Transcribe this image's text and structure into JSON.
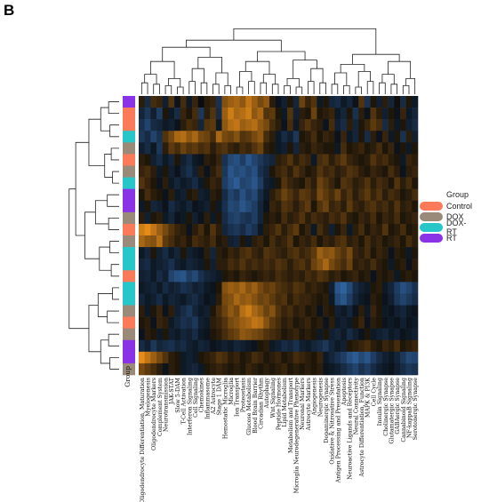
{
  "panel_label": "B",
  "colors": {
    "Control": "#fa7a5a",
    "DOX": "#9a8a7a",
    "DOX-RT": "#27c6c8",
    "RT": "#8a32e6",
    "heat_low": "#3d7fcf",
    "heat_mid": "#060708",
    "heat_high": "#ff9a1a"
  },
  "chart_data": {
    "type": "heatmap",
    "title": "",
    "xlabel": "",
    "ylabel": "",
    "annotation_label": "Group",
    "legend": {
      "title": "Group",
      "placement": "right",
      "entries": [
        "Control",
        "DOX",
        "DOX-RT",
        "RT"
      ]
    },
    "columns": [
      "Oligodendrocyte Differentiation, Maturation",
      "Myelogenesis",
      "Oligodendrocyte Markers",
      "Complement System",
      "Neurotransmission",
      "JAK-STAT",
      "Slow 5-DAM",
      "T-Cell Activation",
      "Interferon Signaling",
      "Cell Signaling",
      "Chemokines",
      "Inflammasome",
      "A2 Astrocyte",
      "Stage 1 DAM",
      "Hemostatic Microglia",
      "Microglia",
      "Ion Transport",
      "Proteostasis",
      "Glucose Metabolism",
      "Blood Brain Barrier",
      "Circadian Rhythm",
      "Autophagy",
      "Wnt Signaling",
      "Peptide Hormones",
      "Lipid Metabolism",
      "Metabolism and Transport",
      "Microglia Neurodegenerative Phenotype",
      "Neuronal Markers",
      "Astrocyte Markers",
      "Angiogenesis",
      "Neurogenesis",
      "Dopaminergic Synapse",
      "Oxidative & Nitrosative Stress",
      "Antigen Processing and Presentation",
      "Apoptosis",
      "Neuroactive Ligands and Receptors",
      "Neural Connectivity",
      "Astrocyte Differentiation, Function",
      "MAPK & PI3K",
      "Cell Cycle",
      "Insulin Signaling",
      "Cholinergic Synapse",
      "Glutamatergic Synapse",
      "GABAergic Synapse",
      "Cannabinoid Signaling",
      "NF-kappaB Signaling",
      "Serotonergic Synapse"
    ],
    "row_groups": [
      "RT",
      "Control",
      "Control",
      "DOX-RT",
      "DOX",
      "Control",
      "DOX",
      "DOX-RT",
      "RT",
      "RT",
      "DOX",
      "Control",
      "DOX",
      "DOX-RT",
      "DOX-RT",
      "Control",
      "DOX-RT",
      "DOX-RT",
      "DOX",
      "Control",
      "DOX",
      "RT",
      "RT",
      "DOX"
    ],
    "value_range": [
      -2,
      2
    ],
    "values": [
      [
        0.3,
        -0.6,
        0.5,
        0.4,
        -0.4,
        0.6,
        -0.2,
        0.5,
        -0.3,
        0.4,
        -0.1,
        0.3,
        0.4,
        -0.7,
        1.0,
        1.2,
        1.3,
        1.1,
        1.5,
        1.2,
        0.9,
        1.1,
        0.3,
        -0.2,
        -0.4,
        0.2,
        -0.5,
        0.8,
        0.4,
        0.6,
        -0.3,
        0.2,
        -0.5,
        -0.6,
        -0.3,
        -0.5,
        -0.2,
        0.6,
        -0.7,
        0.2,
        -0.4,
        0.3,
        -0.5,
        0.1,
        -0.6,
        0.2,
        -0.3
      ],
      [
        -0.5,
        -0.8,
        -0.4,
        -0.9,
        0.2,
        -0.3,
        -0.6,
        0.4,
        0.2,
        0.5,
        -0.8,
        0.3,
        0.6,
        -0.6,
        1.2,
        1.6,
        1.3,
        1.4,
        1.6,
        1.1,
        1.3,
        0.6,
        0.7,
        0.2,
        -0.3,
        0.6,
        -0.4,
        0.3,
        0.2,
        0.8,
        0.2,
        0.3,
        0.4,
        -0.3,
        -0.5,
        0.2,
        -0.7,
        0.3,
        -0.2,
        0.6,
        0.3,
        -0.4,
        0.2,
        -0.2,
        0.4,
        -0.3,
        -0.5
      ],
      [
        -0.7,
        -1.0,
        -0.6,
        -0.5,
        -0.3,
        -0.4,
        -0.2,
        0.3,
        0.5,
        0.4,
        -0.5,
        0.6,
        0.7,
        -0.3,
        1.1,
        1.4,
        1.5,
        1.2,
        1.3,
        1.4,
        1.1,
        0.9,
        0.5,
        0.3,
        -0.2,
        0.5,
        -0.3,
        0.4,
        0.6,
        0.4,
        0.3,
        -0.2,
        0.5,
        -0.4,
        -0.6,
        0.3,
        -0.5,
        0.2,
        0.4,
        0.7,
        0.5,
        -0.6,
        0.3,
        -0.3,
        0.2,
        -0.4,
        -0.6
      ],
      [
        -0.8,
        -0.6,
        -1.0,
        -0.7,
        0.6,
        0.9,
        1.3,
        1.4,
        1.1,
        1.3,
        0.9,
        0.8,
        0.5,
        1.3,
        0.9,
        0.8,
        1.0,
        0.6,
        0.7,
        0.9,
        1.1,
        0.5,
        0.3,
        -0.3,
        -0.6,
        -0.4,
        -0.8,
        0.2,
        0.3,
        0.5,
        0.2,
        0.4,
        0.3,
        -0.2,
        0.4,
        -0.3,
        -0.5,
        0.2,
        -0.6,
        0.3,
        -0.2,
        0.4,
        -0.3,
        0.2,
        -0.7,
        0.3,
        -0.4
      ],
      [
        -0.4,
        -0.6,
        -0.3,
        -0.8,
        0.3,
        0.7,
        0.5,
        0.8,
        0.6,
        0.7,
        0.5,
        0.6,
        0.3,
        0.5,
        0.6,
        0.4,
        0.3,
        0.5,
        0.4,
        0.6,
        0.8,
        0.3,
        0.2,
        -0.3,
        -0.4,
        0.2,
        -0.5,
        0.3,
        0.2,
        0.4,
        0.3,
        0.2,
        0.2,
        -0.3,
        0.5,
        0.2,
        0.3,
        0.4,
        0.2,
        0.3,
        0.5,
        0.2,
        0.4,
        -0.2,
        0.2,
        -0.3,
        0.2
      ],
      [
        0.3,
        0.2,
        -0.4,
        -0.6,
        -0.3,
        -0.5,
        0.2,
        -0.4,
        -0.6,
        -0.3,
        -0.2,
        0.3,
        0.2,
        0.4,
        -0.7,
        -1.1,
        -1.2,
        -0.9,
        -1.3,
        -1.0,
        -0.8,
        -0.6,
        -0.5,
        0.3,
        0.4,
        0.6,
        0.3,
        0.5,
        0.4,
        -0.3,
        0.5,
        0.6,
        0.3,
        0.5,
        0.7,
        0.4,
        0.3,
        0.2,
        0.3,
        0.6,
        0.4,
        0.5,
        0.3,
        0.2,
        -0.3,
        0.4,
        0.3
      ],
      [
        0.4,
        0.5,
        0.3,
        -0.3,
        0.2,
        -0.4,
        -0.2,
        -0.5,
        -0.7,
        -0.4,
        0.3,
        -0.2,
        0.3,
        0.5,
        -0.8,
        -1.3,
        -1.1,
        -1.2,
        -1.0,
        -1.2,
        -0.7,
        -0.5,
        0.2,
        0.4,
        0.5,
        0.3,
        0.6,
        0.4,
        0.2,
        0.3,
        0.6,
        0.4,
        0.5,
        0.3,
        0.4,
        0.6,
        0.5,
        0.3,
        0.2,
        0.4,
        0.3,
        0.2,
        0.5,
        0.3,
        -0.2,
        0.3,
        0.4
      ],
      [
        0.6,
        0.4,
        0.2,
        -0.2,
        0.3,
        -0.3,
        -0.5,
        -0.3,
        -0.4,
        -0.6,
        -0.3,
        0.2,
        0.4,
        0.3,
        -0.9,
        -1.2,
        -1.4,
        -1.0,
        -1.1,
        -1.3,
        -0.9,
        -0.4,
        -0.3,
        0.2,
        0.6,
        0.4,
        0.3,
        0.2,
        0.5,
        0.3,
        0.8,
        0.6,
        0.4,
        0.2,
        0.6,
        0.5,
        0.3,
        0.4,
        0.6,
        0.3,
        0.5,
        0.4,
        0.2,
        0.6,
        0.3,
        0.5,
        0.2
      ],
      [
        0.2,
        0.5,
        0.3,
        0.2,
        -0.2,
        0.3,
        -0.3,
        -0.4,
        0.2,
        0.3,
        -0.4,
        -0.3,
        0.3,
        0.2,
        -0.6,
        -1.0,
        -0.8,
        -1.2,
        -0.9,
        -1.1,
        -0.6,
        -0.3,
        0.3,
        0.5,
        0.8,
        0.6,
        0.4,
        0.7,
        0.6,
        0.4,
        0.9,
        0.7,
        0.5,
        0.8,
        0.4,
        0.6,
        0.3,
        0.5,
        0.7,
        0.4,
        0.6,
        0.3,
        0.5,
        0.4,
        0.2,
        0.3,
        0.5
      ],
      [
        -0.3,
        0.2,
        -0.5,
        -0.4,
        -0.2,
        -0.6,
        -0.4,
        -0.3,
        -0.5,
        -0.2,
        -0.3,
        -0.4,
        0.2,
        -0.3,
        -0.7,
        -1.1,
        -1.0,
        -1.3,
        -1.1,
        -0.9,
        -0.5,
        -0.2,
        0.4,
        0.3,
        0.6,
        0.5,
        0.3,
        0.5,
        0.7,
        0.2,
        0.6,
        0.8,
        0.4,
        0.5,
        0.3,
        0.7,
        0.4,
        0.3,
        0.5,
        0.6,
        0.4,
        0.5,
        0.3,
        0.6,
        0.3,
        0.4,
        0.2
      ],
      [
        0.3,
        -0.4,
        0.2,
        0.3,
        -0.3,
        -0.5,
        -0.2,
        -0.3,
        0.2,
        -0.4,
        -0.2,
        0.3,
        -0.3,
        0.2,
        -0.6,
        -0.9,
        -1.0,
        -0.8,
        -0.7,
        -0.9,
        -0.5,
        0.2,
        0.3,
        0.2,
        0.5,
        0.3,
        0.4,
        0.6,
        0.3,
        0.5,
        0.4,
        0.3,
        0.5,
        0.4,
        0.6,
        0.3,
        0.2,
        0.4,
        0.3,
        0.5,
        0.2,
        0.4,
        0.3,
        0.5,
        0.2,
        0.3,
        0.4
      ],
      [
        1.6,
        1.8,
        1.5,
        1.2,
        0.9,
        0.6,
        0.4,
        0.3,
        -0.2,
        0.3,
        0.5,
        0.2,
        0.6,
        0.3,
        -0.5,
        -0.7,
        -0.8,
        -0.6,
        -0.9,
        -0.7,
        -0.3,
        0.3,
        0.4,
        0.6,
        0.3,
        0.5,
        0.7,
        0.2,
        0.4,
        -0.3,
        0.5,
        0.3,
        -0.4,
        0.2,
        0.4,
        -0.3,
        0.3,
        0.5,
        0.2,
        0.4,
        0.3,
        0.6,
        0.2,
        0.3,
        0.5,
        0.2,
        0.3
      ],
      [
        1.3,
        1.1,
        1.0,
        1.4,
        0.7,
        0.5,
        0.3,
        0.4,
        0.2,
        0.5,
        0.4,
        0.3,
        0.5,
        0.2,
        0.3,
        -0.4,
        -0.5,
        0.2,
        -0.3,
        0.3,
        0.4,
        0.2,
        0.5,
        0.3,
        0.4,
        0.6,
        0.2,
        0.4,
        0.3,
        0.5,
        0.2,
        0.4,
        0.3,
        0.5,
        0.6,
        0.3,
        0.4,
        0.2,
        0.5,
        0.3,
        0.4,
        0.2,
        0.3,
        0.4,
        0.2,
        0.5,
        0.3
      ],
      [
        -0.3,
        -0.5,
        0.2,
        -0.4,
        -0.6,
        -0.3,
        -0.5,
        0.2,
        -0.4,
        -0.3,
        -0.2,
        0.3,
        -0.5,
        0.3,
        0.2,
        0.4,
        0.3,
        0.5,
        0.6,
        0.4,
        0.3,
        0.6,
        0.5,
        0.4,
        0.3,
        0.5,
        0.6,
        0.4,
        0.5,
        0.7,
        1.2,
        1.0,
        1.1,
        0.8,
        0.6,
        0.9,
        0.4,
        0.3,
        0.5,
        0.2,
        0.4,
        0.3,
        -0.2,
        0.3,
        0.2,
        -0.3,
        0.2
      ],
      [
        -0.5,
        -0.6,
        -0.3,
        -0.4,
        -0.5,
        -0.7,
        -0.4,
        -0.3,
        -0.5,
        -0.4,
        -0.3,
        0.2,
        -0.4,
        0.3,
        0.3,
        0.5,
        0.4,
        0.6,
        0.4,
        0.5,
        0.4,
        0.5,
        0.4,
        0.6,
        0.5,
        0.3,
        0.5,
        0.6,
        0.4,
        0.8,
        1.0,
        1.3,
        0.9,
        0.7,
        0.5,
        0.8,
        0.3,
        0.4,
        0.3,
        0.5,
        0.3,
        0.2,
        -0.3,
        0.2,
        0.3,
        -0.2,
        0.3
      ],
      [
        -0.4,
        -0.5,
        -0.3,
        -0.6,
        -0.4,
        -1.0,
        -1.2,
        -1.3,
        -0.9,
        -1.1,
        -0.7,
        -0.5,
        -0.4,
        -0.3,
        0.2,
        0.3,
        0.2,
        0.4,
        0.3,
        0.2,
        0.3,
        0.4,
        0.3,
        0.5,
        0.4,
        0.3,
        0.4,
        0.3,
        0.5,
        0.4,
        0.6,
        0.5,
        0.3,
        0.4,
        0.2,
        0.3,
        0.4,
        0.2,
        0.3,
        -0.2,
        0.3,
        0.2,
        0.3,
        -0.3,
        0.2,
        0.3,
        0.2
      ],
      [
        -0.3,
        -0.4,
        -0.5,
        -0.3,
        -0.6,
        -0.4,
        -0.5,
        -0.7,
        -0.6,
        -0.4,
        -0.5,
        -0.3,
        -0.2,
        0.2,
        1.0,
        1.2,
        1.1,
        1.3,
        1.0,
        1.2,
        0.9,
        0.7,
        0.8,
        0.6,
        0.5,
        0.4,
        0.6,
        0.5,
        0.3,
        0.4,
        0.3,
        0.2,
        -0.4,
        -1.3,
        -1.5,
        -1.1,
        -0.6,
        -0.4,
        -0.3,
        0.2,
        0.3,
        -0.3,
        -0.5,
        -0.9,
        -1.2,
        -1.0,
        -0.7
      ],
      [
        -0.5,
        -0.3,
        -0.4,
        -0.6,
        -0.3,
        -0.5,
        -0.4,
        -0.3,
        -0.5,
        -0.6,
        -0.4,
        -0.2,
        -0.3,
        0.3,
        0.9,
        1.0,
        1.3,
        1.1,
        1.2,
        1.0,
        0.8,
        0.9,
        0.7,
        0.5,
        0.6,
        0.3,
        0.5,
        0.4,
        0.4,
        0.3,
        0.2,
        0.3,
        -0.3,
        -1.1,
        -1.3,
        -0.9,
        -0.5,
        -0.3,
        -0.2,
        0.3,
        0.2,
        -0.2,
        -0.4,
        -0.8,
        -1.0,
        -0.8,
        -0.6
      ],
      [
        0.3,
        -0.3,
        0.2,
        0.4,
        -0.2,
        0.3,
        -0.4,
        -0.6,
        -0.8,
        -0.5,
        -0.3,
        -0.4,
        0.2,
        0.5,
        0.8,
        1.1,
        0.9,
        1.4,
        1.6,
        1.3,
        1.1,
        0.8,
        1.0,
        0.6,
        0.4,
        0.5,
        0.3,
        0.4,
        0.2,
        0.3,
        -0.2,
        0.3,
        0.2,
        -0.4,
        -0.3,
        -0.5,
        -0.2,
        0.3,
        -0.3,
        0.4,
        0.2,
        -0.3,
        -0.2,
        -0.4,
        -0.5,
        -0.3,
        -0.2
      ],
      [
        0.2,
        0.3,
        -0.2,
        0.4,
        0.3,
        -0.3,
        -0.5,
        -0.7,
        -0.6,
        -0.8,
        -0.4,
        -0.3,
        0.3,
        0.4,
        0.6,
        0.9,
        1.0,
        1.2,
        1.3,
        1.5,
        1.4,
        1.0,
        0.7,
        0.5,
        0.3,
        0.4,
        0.2,
        0.3,
        0.4,
        0.2,
        0.3,
        -0.2,
        0.3,
        -0.3,
        -0.4,
        -0.3,
        0.2,
        0.4,
        -0.2,
        0.3,
        0.2,
        -0.2,
        -0.3,
        -0.2,
        -0.4,
        -0.2,
        -0.3
      ],
      [
        -0.2,
        0.3,
        0.2,
        -0.3,
        0.2,
        -0.4,
        -0.3,
        -0.5,
        -0.4,
        -0.6,
        -0.3,
        -0.2,
        0.2,
        0.3,
        0.5,
        0.7,
        0.8,
        1.1,
        1.0,
        0.9,
        0.8,
        0.6,
        0.5,
        0.4,
        0.2,
        0.3,
        0.4,
        0.2,
        0.3,
        0.2,
        -0.3,
        0.2,
        -0.4,
        -0.5,
        -0.3,
        -0.6,
        -0.4,
        -0.2,
        0.2,
        -0.3,
        -0.4,
        -0.5,
        -0.3,
        -0.4,
        -0.2,
        -0.3,
        -0.4
      ],
      [
        -0.6,
        -0.4,
        -0.8,
        -0.5,
        -0.6,
        -0.7,
        -0.5,
        -0.6,
        -0.4,
        -0.3,
        -0.5,
        -0.4,
        -0.2,
        -0.3,
        -0.4,
        -0.3,
        -0.5,
        -0.4,
        -0.3,
        -0.2,
        0.2,
        0.3,
        -0.3,
        -0.4,
        -0.6,
        -0.5,
        -0.7,
        -0.4,
        -0.3,
        -0.5,
        -0.6,
        -0.8,
        -0.5,
        -0.3,
        -0.4,
        0.2,
        0.3,
        0.4,
        0.5,
        0.3,
        0.2,
        0.4,
        0.3,
        0.5,
        0.2,
        0.3,
        0.4
      ],
      [
        1.8,
        1.5,
        1.2,
        0.9,
        0.6,
        0.3,
        0.2,
        -0.3,
        -0.4,
        -0.3,
        0.2,
        0.3,
        0.4,
        0.6,
        0.5,
        0.3,
        0.4,
        0.2,
        0.3,
        0.5,
        0.4,
        0.2,
        0.3,
        0.4,
        0.2,
        0.3,
        0.5,
        0.4,
        0.3,
        0.2,
        0.4,
        -0.3,
        -0.5,
        -0.7,
        -0.9,
        -1.2,
        -1.4,
        -1.1,
        -1.3,
        -0.9,
        -0.6,
        -0.4,
        -0.3,
        -0.5,
        -0.8,
        -1.1,
        -1.0
      ],
      [
        0.9,
        0.7,
        0.5,
        0.3,
        -0.2,
        0.3,
        0.2,
        -0.3,
        -0.4,
        -0.5,
        -0.3,
        0.2,
        0.3,
        0.4,
        0.3,
        0.2,
        0.3,
        0.2,
        0.4,
        0.3,
        0.2,
        0.3,
        0.2,
        0.3,
        0.4,
        0.2,
        0.3,
        0.2,
        0.3,
        0.2,
        0.3,
        -0.2,
        -0.3,
        -0.4,
        -0.6,
        -0.8,
        -1.0,
        -0.7,
        -0.9,
        -0.6,
        -0.4,
        -0.3,
        -0.2,
        -0.4,
        -0.6,
        -0.8,
        -0.7
      ]
    ]
  }
}
